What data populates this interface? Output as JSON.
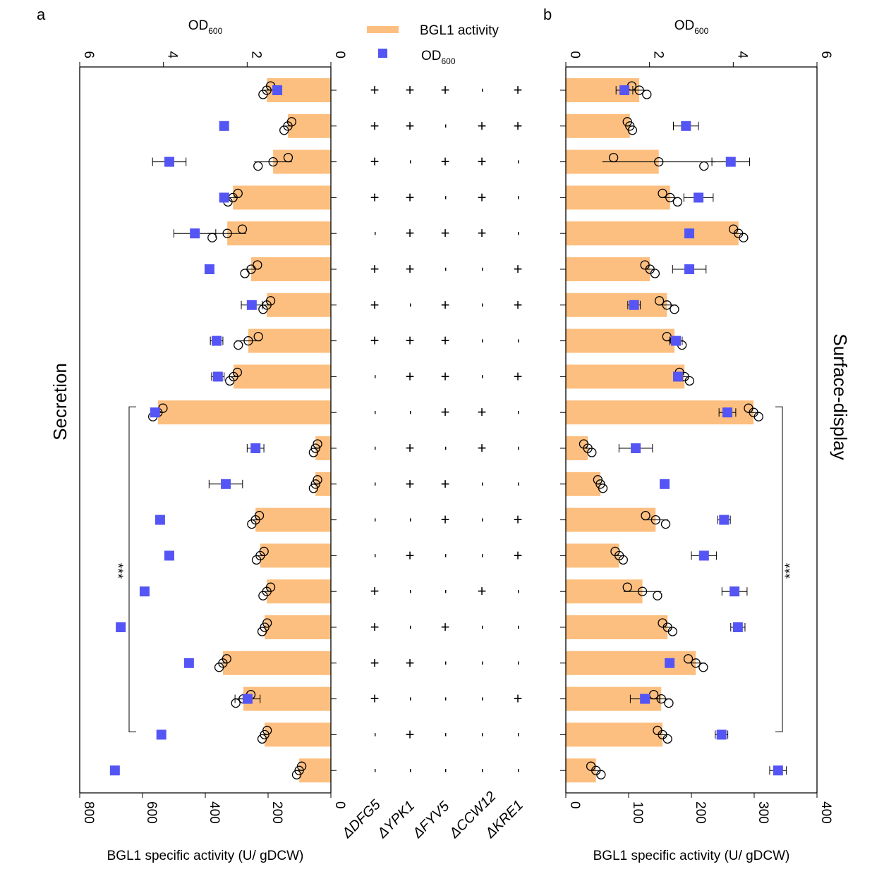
{
  "colors": {
    "bar": "#FDBF7F",
    "od": "#5555F5",
    "axis": "#000000"
  },
  "legend": {
    "bar_label": "BGL1 activity",
    "od_label": "OD",
    "od_sub": "600"
  },
  "genes": [
    "ΔDFG5",
    "ΔYPK1",
    "ΔFYV5",
    "ΔCCW12",
    "ΔKRE1"
  ],
  "genotypes": [
    [
      "+",
      "+",
      "+",
      "-",
      "+"
    ],
    [
      "+",
      "+",
      "-",
      "+",
      "+"
    ],
    [
      "+",
      "-",
      "+",
      "+",
      "-"
    ],
    [
      "+",
      "+",
      "-",
      "+",
      "-"
    ],
    [
      "-",
      "+",
      "+",
      "+",
      "-"
    ],
    [
      "+",
      "+",
      "-",
      "-",
      "+"
    ],
    [
      "+",
      "-",
      "+",
      "-",
      "+"
    ],
    [
      "+",
      "+",
      "+",
      "-",
      "-"
    ],
    [
      "-",
      "+",
      "+",
      "-",
      "+"
    ],
    [
      "-",
      "-",
      "+",
      "+",
      "-"
    ],
    [
      "-",
      "+",
      "-",
      "+",
      "-"
    ],
    [
      "-",
      "+",
      "+",
      "-",
      "-"
    ],
    [
      "-",
      "-",
      "+",
      "-",
      "+"
    ],
    [
      "-",
      "+",
      "-",
      "-",
      "+"
    ],
    [
      "+",
      "-",
      "-",
      "+",
      "-"
    ],
    [
      "+",
      "-",
      "+",
      "-",
      "-"
    ],
    [
      "+",
      "+",
      "-",
      "-",
      "-"
    ],
    [
      "+",
      "-",
      "-",
      "-",
      "+"
    ],
    [
      "-",
      "+",
      "-",
      "-",
      "-"
    ],
    [
      "-",
      "-",
      "-",
      "-",
      "-"
    ]
  ],
  "chart_data": [
    {
      "panel": "a",
      "type": "bar",
      "orientation": "horizontal",
      "title": "Secretion",
      "xlabel": "BGL1 specific activity (U/ gDCW)",
      "x2label": "OD",
      "x2label_sub": "600",
      "xlim": [
        0,
        800
      ],
      "xticks": [
        0,
        200,
        400,
        600,
        800
      ],
      "x2lim": [
        0,
        6
      ],
      "x2ticks": [
        0,
        2,
        4,
        6
      ],
      "activity": [
        204,
        137,
        184,
        312,
        330,
        254,
        204,
        263,
        310,
        551,
        49,
        49,
        240,
        225,
        204,
        211,
        344,
        279,
        211,
        101
      ],
      "activity_err": [
        15,
        15,
        60,
        20,
        60,
        25,
        15,
        40,
        15,
        20,
        8,
        8,
        15,
        15,
        15,
        10,
        15,
        30,
        10,
        10
      ],
      "od600": [
        1.28,
        2.55,
        3.86,
        2.55,
        3.25,
        2.9,
        1.89,
        2.73,
        2.7,
        4.2,
        1.8,
        2.51,
        4.08,
        3.86,
        4.45,
        5.02,
        3.39,
        1.99,
        4.05,
        5.16
      ],
      "od600_err": [
        0.05,
        0,
        0.4,
        0.08,
        0.5,
        0,
        0.25,
        0.15,
        0.15,
        0.05,
        0.2,
        0.4,
        0,
        0,
        0,
        0,
        0,
        0.3,
        0,
        0
      ],
      "significance": {
        "label": "***",
        "from_row": 10,
        "to_row": 19
      }
    },
    {
      "panel": "b",
      "type": "bar",
      "orientation": "horizontal",
      "title": "Surface-display",
      "xlabel": "BGL1 specific activity (U/ gDCW)",
      "x2label": "OD",
      "x2label_sub": "600",
      "xlim": [
        0,
        400
      ],
      "xticks": [
        0,
        100,
        200,
        300,
        400
      ],
      "x2lim": [
        0,
        6
      ],
      "x2ticks": [
        0,
        2,
        4,
        6
      ],
      "activity": [
        117,
        102,
        148,
        166,
        275,
        134,
        161,
        173,
        189,
        299,
        35,
        55,
        143,
        85,
        122,
        162,
        207,
        152,
        154,
        48
      ],
      "activity_err": [
        15,
        5,
        90,
        15,
        10,
        10,
        15,
        15,
        10,
        10,
        8,
        5,
        20,
        8,
        30,
        10,
        15,
        15,
        10,
        10
      ],
      "od600": [
        1.4,
        2.87,
        3.94,
        3.17,
        2.95,
        2.95,
        1.63,
        2.63,
        2.68,
        3.86,
        1.67,
        2.36,
        3.78,
        3.3,
        4.03,
        4.11,
        2.48,
        1.89,
        3.72,
        5.07
      ],
      "od600_err": [
        0.2,
        0.3,
        0.45,
        0.35,
        0.05,
        0.4,
        0.15,
        0.15,
        0.05,
        0.2,
        0.4,
        0,
        0.15,
        0.3,
        0.3,
        0.17,
        0,
        0.35,
        0.15,
        0.2
      ],
      "significance": {
        "label": "***",
        "from_row": 10,
        "to_row": 19
      }
    }
  ],
  "panel_labels": [
    "a",
    "b"
  ]
}
